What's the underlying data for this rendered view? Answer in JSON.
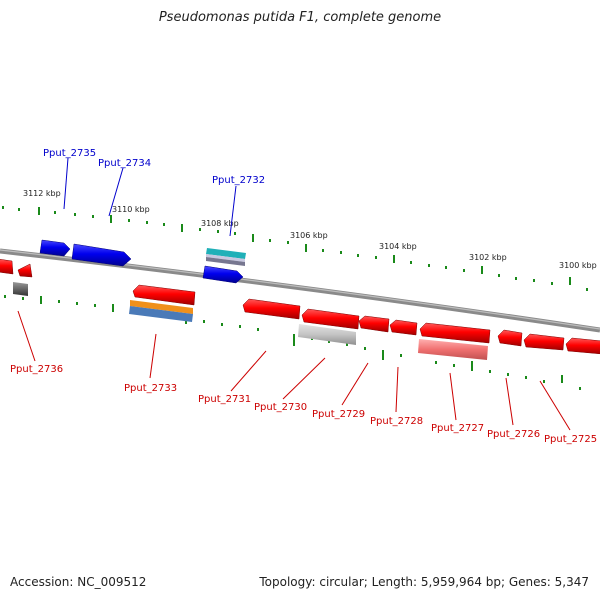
{
  "title": "Pseudomonas putida F1, complete genome",
  "footer": {
    "accession": "Accession: NC_009512",
    "topology": "Topology: circular; Length: 5,959,964 bp; Genes: 5,347"
  },
  "colors": {
    "forward": "#0000dd",
    "reverse": "#dd0000",
    "ticks": "#1a8a1a",
    "backbone": "#888888"
  },
  "scale_labels": [
    "3112 kbp",
    "3110 kbp",
    "3108 kbp",
    "3106 kbp",
    "3104 kbp",
    "3102 kbp",
    "3100 kbp"
  ],
  "genes": {
    "forward": [
      "Pput_2735",
      "Pput_2734",
      "Pput_2732"
    ],
    "reverse": [
      "Pput_2736",
      "Pput_2733",
      "Pput_2731",
      "Pput_2730",
      "Pput_2729",
      "Pput_2728",
      "Pput_2727",
      "Pput_2726",
      "Pput_2725"
    ]
  }
}
